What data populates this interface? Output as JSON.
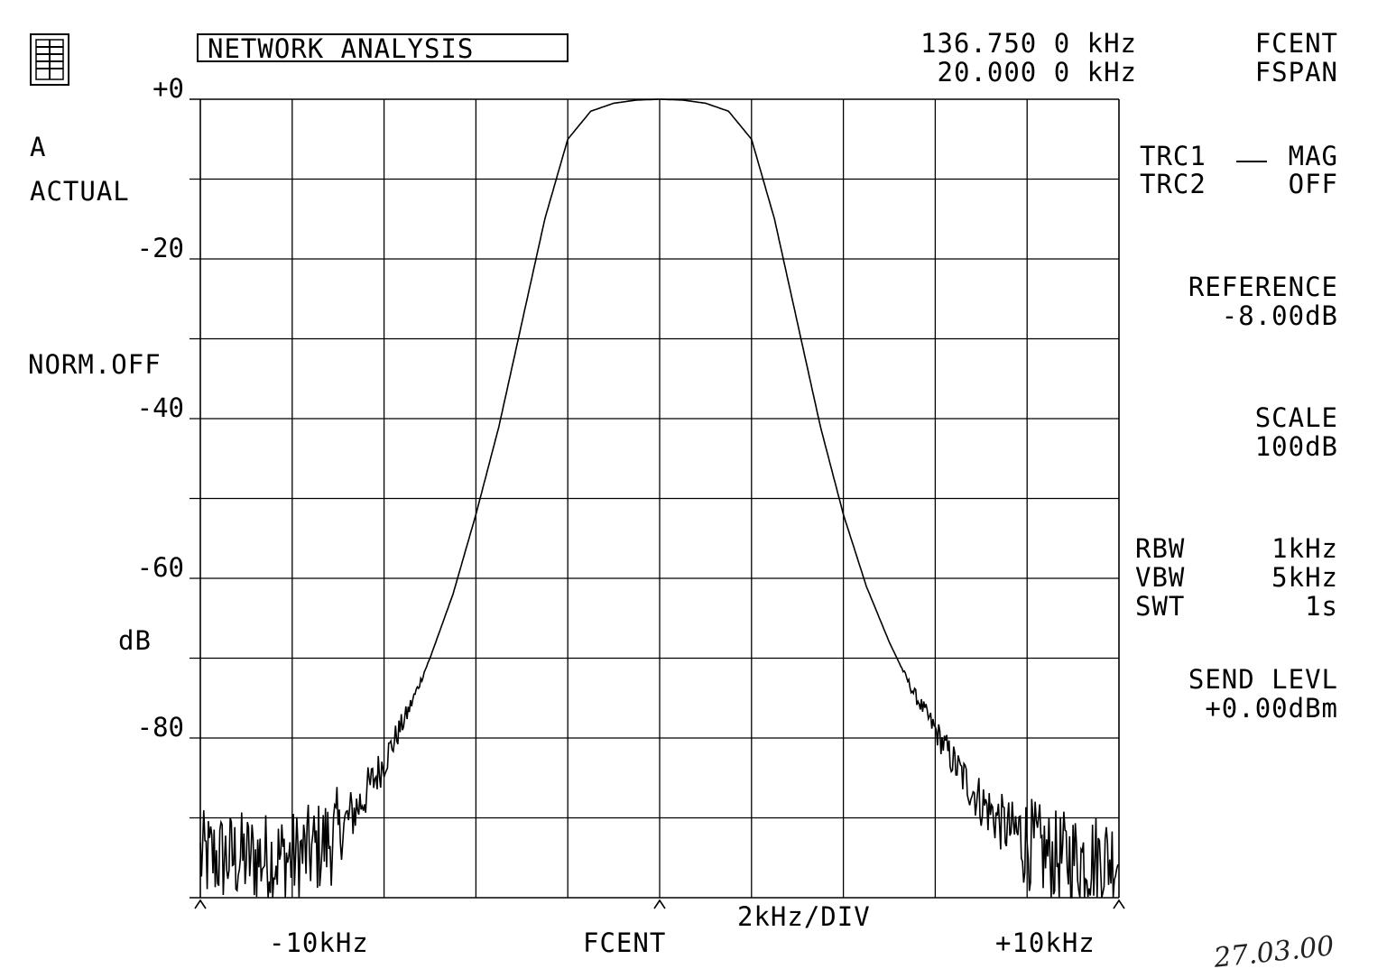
{
  "header": {
    "title": "NETWORK ANALYSIS",
    "fcent_value": "136.750 0 kHz",
    "fcent_label": "FCENT",
    "fspan_value": "20.000 0 kHz",
    "fspan_label": "FSPAN"
  },
  "left_panel": {
    "channel": "A",
    "mode": "ACTUAL",
    "norm": "NORM.OFF",
    "unit": "dB"
  },
  "right_panel": {
    "trc1_label": "TRC1",
    "trc1_value": "MAG",
    "trc2_label": "TRC2",
    "trc2_value": "OFF",
    "reference_label": "REFERENCE",
    "reference_value": "-8.00dB",
    "scale_label": "SCALE",
    "scale_value": "100dB",
    "rbw_label": "RBW",
    "rbw_value": "1kHz",
    "vbw_label": "VBW",
    "vbw_value": "5kHz",
    "swt_label": "SWT",
    "swt_value": "1s",
    "send_label": "SEND LEVL",
    "send_value": "+0.00dBm"
  },
  "footer": {
    "left": "-10kHz",
    "center": "FCENT",
    "div": "2kHz/DIV",
    "right": "+10kHz",
    "signature": "27.03.00"
  },
  "chart_data": {
    "type": "line",
    "x_unit": "kHz offset from FCENT",
    "xlim": [
      -10,
      10
    ],
    "ylim": [
      -100,
      0
    ],
    "ytick_values": [
      0,
      -20,
      -40,
      -60,
      -80
    ],
    "ytick_labels": [
      "+0",
      "-20",
      "-40",
      "-60",
      "-80"
    ],
    "grid": true,
    "series": [
      {
        "x": [
          -10,
          -9.5,
          -9,
          -8.5,
          -8,
          -7.5,
          -7,
          -6.5,
          -6,
          -5.5,
          -5,
          -4.5,
          -4,
          -3.5,
          -3,
          -2.5,
          -2,
          -1.5,
          -1,
          -0.5,
          0,
          0.5,
          1,
          1.5,
          2,
          2.5,
          3,
          3.5,
          4,
          4.5,
          5,
          5.5,
          6,
          6.5,
          7,
          7.5,
          8,
          8.5,
          9,
          9.5,
          10
        ],
        "y": [
          -95,
          -95,
          -95,
          -95,
          -95,
          -94,
          -92,
          -88,
          -83,
          -77,
          -70,
          -62,
          -52,
          -41,
          -28,
          -15,
          -5,
          -1.5,
          -0.5,
          -0.1,
          0,
          -0.1,
          -0.5,
          -1.5,
          -5,
          -15,
          -28,
          -41,
          -52,
          -61,
          -68,
          -74,
          -79,
          -84,
          -88,
          -91,
          -93,
          -95,
          -95,
          -95,
          -95
        ]
      }
    ]
  }
}
